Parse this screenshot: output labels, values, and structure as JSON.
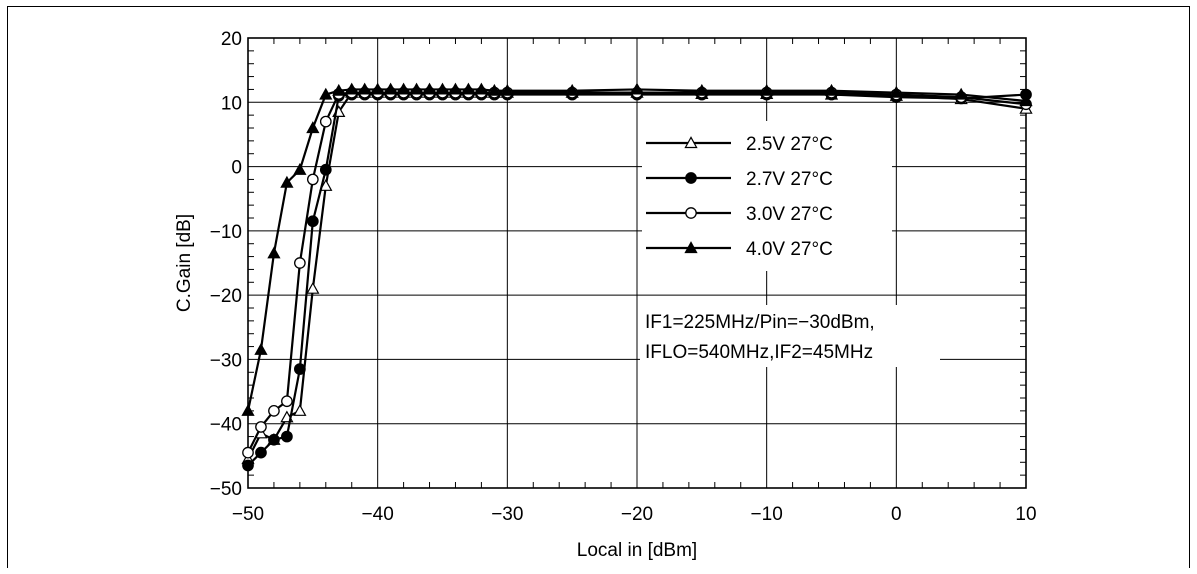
{
  "chart_data": {
    "type": "line",
    "xlabel": "Local in [dBm]",
    "ylabel": "C.Gain [dB]",
    "xlim": [
      -50,
      10
    ],
    "ylim": [
      -50,
      20
    ],
    "xticks": [
      -50,
      -40,
      -30,
      -20,
      -10,
      0,
      10
    ],
    "xtick_labels": [
      "−50",
      "−40",
      "−30",
      "−20",
      "−10",
      "0",
      "10"
    ],
    "yticks": [
      20,
      10,
      0,
      -10,
      -20,
      -30,
      -40,
      -50
    ],
    "ytick_labels": [
      "20",
      "10",
      "0",
      "−10",
      "−20",
      "−30",
      "−40",
      "−50"
    ],
    "grid": true,
    "legend_position": "right",
    "annotation": [
      "IF1=225MHz/Pin=−30dBm,",
      "IFLO=540MHz,IF2=45MHz"
    ],
    "series": [
      {
        "name": "2.5V 27°C",
        "marker": "open-triangle",
        "x": [
          -50,
          -49,
          -48,
          -47,
          -46,
          -45,
          -44,
          -43,
          -42,
          -41,
          -40,
          -39,
          -38,
          -37,
          -36,
          -35,
          -34,
          -33,
          -32,
          -31,
          -30,
          -25,
          -20,
          -15,
          -10,
          -5,
          0,
          5,
          10
        ],
        "y": [
          -45.5,
          -41.5,
          -42.5,
          -39,
          -38,
          -19,
          -3,
          8.5,
          11.5,
          11.5,
          11.5,
          11.5,
          11.5,
          11.5,
          11.5,
          11.5,
          11.5,
          11.5,
          11.5,
          11.5,
          11.5,
          11.5,
          11.5,
          11.3,
          11.3,
          11.2,
          11,
          10.5,
          9
        ]
      },
      {
        "name": "2.7V 27°C",
        "marker": "filled-circle",
        "x": [
          -50,
          -49,
          -48,
          -47,
          -46,
          -45,
          -44,
          -43,
          -42,
          -41,
          -40,
          -39,
          -38,
          -37,
          -36,
          -35,
          -34,
          -33,
          -32,
          -31,
          -30,
          -25,
          -20,
          -15,
          -10,
          -5,
          0,
          5,
          10
        ],
        "y": [
          -46.5,
          -44.5,
          -42.5,
          -42,
          -31.5,
          -8.5,
          -0.5,
          11,
          11.2,
          11.2,
          11.2,
          11.2,
          11.2,
          11.2,
          11.2,
          11.2,
          11.2,
          11.2,
          11.2,
          11.2,
          11.2,
          11.2,
          11.2,
          11.2,
          11.2,
          11.2,
          10.8,
          10.6,
          11.2
        ]
      },
      {
        "name": "3.0V 27°C",
        "marker": "open-circle",
        "x": [
          -50,
          -49,
          -48,
          -47,
          -46,
          -45,
          -44,
          -43,
          -42,
          -41,
          -40,
          -39,
          -38,
          -37,
          -36,
          -35,
          -34,
          -33,
          -32,
          -31,
          -30,
          -25,
          -20,
          -15,
          -10,
          -5,
          0,
          5,
          10
        ],
        "y": [
          -44.5,
          -40.5,
          -38,
          -36.5,
          -15,
          -2,
          7,
          11.3,
          11.5,
          11.5,
          11.5,
          11.5,
          11.5,
          11.5,
          11.5,
          11.5,
          11.5,
          11.5,
          11.5,
          11.5,
          11.5,
          11.5,
          11.5,
          11.5,
          11.5,
          11.5,
          11.2,
          10.8,
          9.7
        ]
      },
      {
        "name": "4.0V 27°C",
        "marker": "filled-triangle",
        "x": [
          -50,
          -49,
          -48,
          -47,
          -46,
          -45,
          -44,
          -43,
          -42,
          -41,
          -40,
          -39,
          -38,
          -37,
          -36,
          -35,
          -34,
          -33,
          -32,
          -31,
          -30,
          -25,
          -20,
          -15,
          -10,
          -5,
          0,
          5,
          10
        ],
        "y": [
          -38,
          -28.5,
          -13.5,
          -2.5,
          -0.5,
          6,
          11.2,
          11.8,
          12,
          12,
          12,
          12,
          12,
          12,
          12,
          12,
          12,
          12,
          12,
          11.8,
          11.8,
          11.8,
          12,
          11.8,
          11.8,
          11.8,
          11.5,
          11.2,
          10.2
        ]
      }
    ]
  }
}
